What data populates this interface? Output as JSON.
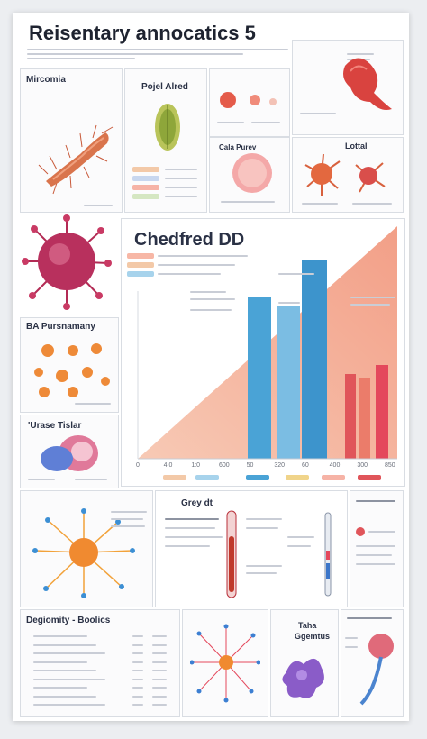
{
  "header": {
    "title": "Reisentary annocatics 5"
  },
  "panels": {
    "mircomia": {
      "title": "Mircomia"
    },
    "pojel_alred": {
      "title": "Pojel Alred"
    },
    "cala_purev": {
      "title": "Cala Purev"
    },
    "lottal": {
      "title": "Lottal"
    },
    "ba_pursnamany": {
      "title": "BA Pursnamany"
    },
    "urase_tislar": {
      "title": "'Urase Tislar"
    },
    "grey_dt": {
      "title": "Grey dt"
    },
    "degiomity": {
      "title": "Degiomity - Boolics"
    },
    "taha": {
      "title_line1": "Taha",
      "title_line2": "Ggemtus"
    }
  },
  "chart_data": {
    "type": "bar",
    "title": "Chedfred DD",
    "x_ticks": [
      "0",
      "4:0",
      "1:0",
      "600",
      "50",
      "320",
      "60",
      "400",
      "300",
      "850"
    ],
    "colors": {
      "blue": "#4aa3d6",
      "red": "#e0555a",
      "peach": "#f2a489"
    }
  },
  "icons": [
    "virus-icon",
    "bacterium-icon",
    "cell-icon",
    "particle-icon"
  ]
}
